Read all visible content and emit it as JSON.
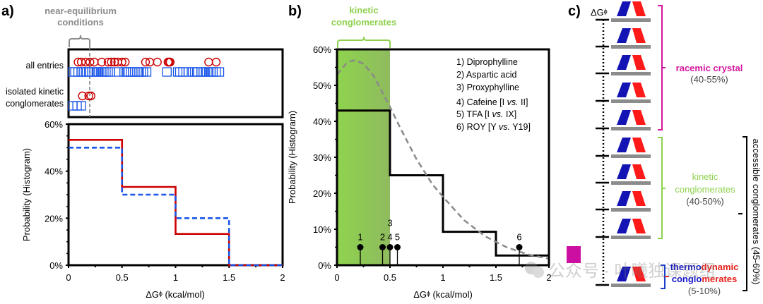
{
  "panel_labels": {
    "a": "a)",
    "b": "b)",
    "c": "c)"
  },
  "chart_data": [
    {
      "id": "a_top",
      "type": "scatter",
      "title": "near-equilibrium conditions",
      "bracket_label_lines": [
        "near-equilibrium",
        "conditions"
      ],
      "xlim": [
        0,
        2
      ],
      "threshold_x": 0.2,
      "rows": [
        {
          "label": "all entries",
          "circles_red": [
            0.05,
            0.08,
            0.12,
            0.16,
            0.2,
            0.27,
            0.33,
            0.36,
            0.39,
            0.42,
            0.46,
            0.49,
            0.68,
            0.72,
            0.79,
            0.89,
            0.9,
            0.91,
            1.27,
            1.34
          ],
          "squares_blue": [
            0.0,
            0.02,
            0.05,
            0.08,
            0.1,
            0.12,
            0.15,
            0.18,
            0.2,
            0.22,
            0.24,
            0.27,
            0.29,
            0.31,
            0.33,
            0.35,
            0.43,
            0.48,
            0.5,
            0.52,
            0.54,
            0.56,
            0.58,
            0.6,
            0.62,
            0.64,
            0.66,
            0.69,
            0.88,
            0.98,
            1.0,
            1.03,
            1.08,
            1.12,
            1.14,
            1.17,
            1.2,
            1.22,
            1.24,
            1.27,
            1.29,
            1.31,
            1.34,
            1.37
          ]
        },
        {
          "label_lines": [
            "isolated kinetic",
            "conglomerates"
          ],
          "circles_red": [
            0.09,
            0.15,
            0.17
          ],
          "squares_blue": [
            0.0,
            0.04,
            0.08
          ]
        }
      ]
    },
    {
      "id": "a_bottom",
      "type": "line",
      "xlabel": "ΔGᶲ (kcal/mol)",
      "ylabel": "Probability (Histogram)",
      "xlim": [
        0,
        2
      ],
      "ylim": [
        0,
        0.6
      ],
      "xticks": [
        "0",
        "0.5",
        "1",
        "1.5",
        "2"
      ],
      "yticks": [
        "0%",
        "20%",
        "40%",
        "60%"
      ],
      "bin_edges": [
        0,
        0.5,
        1,
        1.5,
        2
      ],
      "series": [
        {
          "name": "all entries (red, solid)",
          "color": "#cc0000",
          "values": [
            0.533,
            0.333,
            0.133,
            0.0
          ]
        },
        {
          "name": "all entries (blue, dashed)",
          "color": "#1a56e8",
          "values": [
            0.5,
            0.3,
            0.2,
            0.0
          ]
        }
      ]
    },
    {
      "id": "b",
      "type": "line",
      "xlabel": "ΔGᶲ (kcal/mol)",
      "ylabel": "Probability (Histogram)",
      "xlim": [
        0,
        2
      ],
      "ylim": [
        0,
        0.6
      ],
      "xticks": [
        "0",
        "0.5",
        "1",
        "1.5",
        "2"
      ],
      "yticks": [
        "0%",
        "10%",
        "20%",
        "30%",
        "40%",
        "50%",
        "60%"
      ],
      "shaded_region": {
        "x": [
          0,
          0.5
        ],
        "label_lines": [
          "kinetic",
          "conglomerates"
        ]
      },
      "histogram": {
        "bin_edges": [
          0,
          0.5,
          1,
          1.5,
          2
        ],
        "values": [
          0.43,
          0.25,
          0.093,
          0.027
        ]
      },
      "fit_curve": {
        "style": "dashed",
        "x": [
          0,
          0.1,
          0.17,
          0.25,
          0.35,
          0.5,
          0.6,
          0.75,
          0.9,
          1.0,
          1.2,
          1.4,
          1.6,
          1.8,
          2.0
        ],
        "y": [
          0.53,
          0.565,
          0.57,
          0.56,
          0.525,
          0.44,
          0.38,
          0.295,
          0.225,
          0.19,
          0.125,
          0.08,
          0.05,
          0.03,
          0.018
        ]
      },
      "markers": [
        {
          "label": "1",
          "x": 0.22,
          "y": 0.05
        },
        {
          "label": "2",
          "x": 0.43,
          "y": 0.05
        },
        {
          "label": "3",
          "x": 0.5,
          "y": 0.05,
          "label_offset": "above"
        },
        {
          "label": "4",
          "x": 0.5,
          "y": 0.05
        },
        {
          "label": "5",
          "x": 0.57,
          "y": 0.05
        },
        {
          "label": "6",
          "x": 1.72,
          "y": 0.05
        }
      ],
      "legend_items": [
        {
          "num": "1)",
          "text": "Diprophylline"
        },
        {
          "num": "2)",
          "text": "Aspartic acid"
        },
        {
          "num": "3)",
          "text": "Proxyphylline"
        },
        {
          "num": "4)",
          "text": "Cafeine [I ",
          "vs": "vs.",
          "after": " II]"
        },
        {
          "num": "5)",
          "text": "TFA [I ",
          "vs": "vs.",
          "after": " IX]"
        },
        {
          "num": "6)",
          "text": "ROY [Y ",
          "vs": "vs.",
          "after": " Y19]"
        }
      ],
      "legend_position": "top-right"
    }
  ],
  "panel_c": {
    "axis_label": "ΔGᶲ",
    "level_count": 10,
    "groups": [
      {
        "name": "racemic crystal",
        "percent": "(40-55%)",
        "color": "#d4159e",
        "levels": 5
      },
      {
        "name_lines": [
          "kinetic",
          "conglomerates"
        ],
        "percent": "(40-50%)",
        "color": "#8fd14f",
        "levels": 4
      },
      {
        "name_parts": [
          {
            "text": "thermo",
            "color": "#1414c8"
          },
          {
            "text": "dynamic",
            "color": "#e8201a"
          }
        ],
        "name_parts2": [
          {
            "text": "conglo",
            "color": "#1414c8"
          },
          {
            "text": "merates",
            "color": "#e8201a"
          }
        ],
        "percent": "(5-10%)",
        "levels": 1
      }
    ],
    "outer_label": "accessible conglomerates (45-60%)"
  },
  "colors": {
    "red": "#cc0000",
    "blue": "#1a56e8",
    "green": "#8fd14f",
    "magenta": "#d4159e",
    "gray": "#888888"
  },
  "watermark": "公众号 · 叶曦独课题组"
}
